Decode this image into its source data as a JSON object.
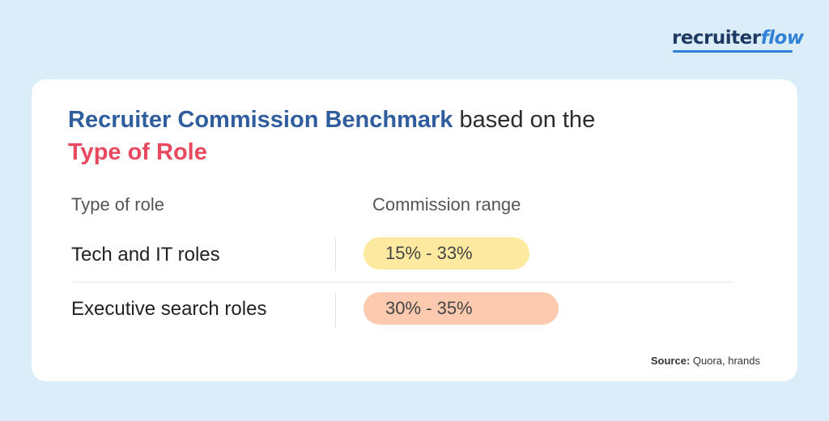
{
  "logo": {
    "part1": "recruiter",
    "part2": "flow"
  },
  "title": {
    "part1": "Recruiter Commission Benchmark",
    "part2": " based on the",
    "part3": "Type of Role"
  },
  "chart_data": {
    "type": "table",
    "columns": [
      "Type of role",
      "Commission range"
    ],
    "rows": [
      {
        "role": "Tech and IT roles",
        "range": "15% - 33%",
        "min": 15,
        "max": 33,
        "color": "#fdeaa0"
      },
      {
        "role": "Executive search roles",
        "range": "30% - 35%",
        "min": 30,
        "max": 35,
        "color": "#fdcab0"
      }
    ]
  },
  "source": {
    "label": "Source:",
    "text": " Quora, hrands"
  }
}
